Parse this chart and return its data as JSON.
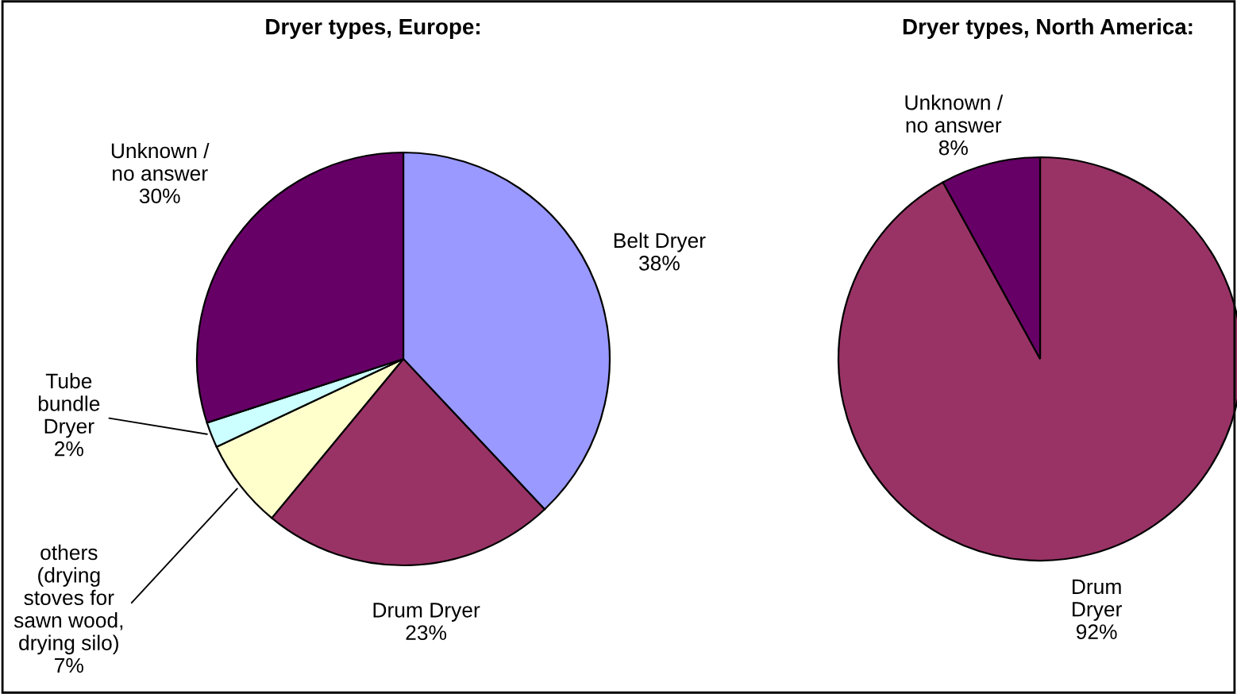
{
  "chart_data": [
    {
      "type": "pie",
      "title": "Dryer types, Europe:",
      "categories": [
        "Belt Dryer",
        "Drum Dryer",
        "others\n(drying\nstoves for\nsawn wood,\ndrying silo)",
        "Tube\nbundle\nDryer",
        "Unknown /\nno answer"
      ],
      "values": [
        38,
        23,
        7,
        2,
        30
      ],
      "value_labels": [
        "38%",
        "23%",
        "7%",
        "2%",
        "30%"
      ],
      "colors": [
        "#9999ff",
        "#993366",
        "#ffffcc",
        "#ccffff",
        "#660066"
      ],
      "legend": false
    },
    {
      "type": "pie",
      "title": "Dryer types, North America:",
      "categories": [
        "Drum\nDryer",
        "Unknown /\nno answer"
      ],
      "values": [
        92,
        8
      ],
      "value_labels": [
        "92%",
        "8%"
      ],
      "colors": [
        "#993366",
        "#660066"
      ],
      "legend": false
    }
  ]
}
